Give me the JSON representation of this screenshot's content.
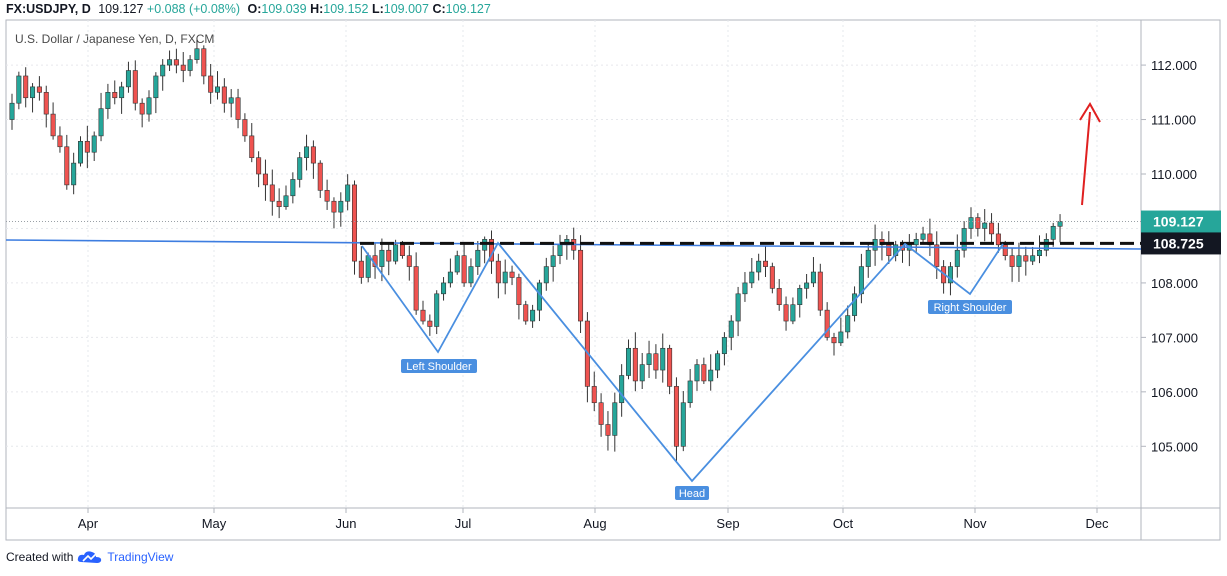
{
  "header": {
    "symbol": "FX:USDJPY, D",
    "last": "109.127",
    "change": "+0.088 (+0.08%)",
    "o_label": "O:",
    "o_value": "109.039",
    "h_label": "H:",
    "h_value": "109.152",
    "l_label": "L:",
    "l_value": "109.007",
    "c_label": "C:",
    "c_value": "109.127"
  },
  "subtitle": "U.S. Dollar / Japanese Yen, D, FXCM",
  "footer": {
    "created_with": "Created with",
    "brand": "TradingView"
  },
  "colors": {
    "up": "#26a69a",
    "down": "#ef5350",
    "annotation": "#4a8fe0",
    "neckline": "#3d7de0",
    "arrow": "#e02020",
    "price_badge": "#26a69a",
    "level_badge": "#131722"
  },
  "chart_data": {
    "type": "candlestick",
    "title": "U.S. Dollar / Japanese Yen, D, FXCM",
    "y_axis": {
      "ticks": [
        "105.000",
        "106.000",
        "107.000",
        "108.000",
        "109.000",
        "110.000",
        "111.000",
        "112.000"
      ],
      "ylim": [
        104.0,
        112.8
      ],
      "side": "right"
    },
    "x_axis": {
      "ticks": [
        "Apr",
        "May",
        "Jun",
        "Jul",
        "Aug",
        "Sep",
        "Oct",
        "Nov",
        "Dec"
      ]
    },
    "price_labels": {
      "last": "109.127",
      "level": "108.725"
    },
    "annotations": [
      "Left Shoulder",
      "Head",
      "Right Shoulder"
    ],
    "pattern": "inverse head and shoulders",
    "neckline_level": 108.725,
    "closes": [
      111.3,
      111.8,
      111.4,
      111.6,
      111.5,
      111.1,
      110.7,
      110.5,
      109.8,
      110.2,
      110.6,
      110.4,
      110.7,
      111.2,
      111.5,
      111.4,
      111.6,
      111.9,
      111.3,
      111.1,
      111.4,
      111.8,
      112.0,
      112.1,
      112.0,
      111.9,
      112.1,
      112.3,
      111.8,
      111.5,
      111.6,
      111.3,
      111.4,
      111.0,
      110.7,
      110.3,
      110.0,
      109.8,
      109.5,
      109.4,
      109.6,
      109.9,
      110.3,
      110.5,
      110.2,
      109.7,
      109.5,
      109.3,
      109.5,
      109.8,
      108.4,
      108.1,
      108.5,
      108.3,
      108.6,
      108.4,
      108.7,
      108.5,
      108.3,
      107.5,
      107.3,
      107.2,
      107.8,
      108.0,
      108.2,
      108.5,
      108.0,
      108.3,
      108.6,
      108.8,
      108.4,
      108.0,
      108.2,
      108.1,
      107.6,
      107.3,
      107.5,
      108.0,
      108.3,
      108.5,
      108.7,
      108.8,
      108.6,
      107.3,
      106.1,
      105.8,
      105.4,
      105.2,
      105.8,
      106.3,
      106.8,
      106.2,
      106.5,
      106.7,
      106.4,
      106.8,
      106.1,
      105.0,
      105.8,
      106.2,
      106.5,
      106.2,
      106.4,
      106.7,
      107.0,
      107.3,
      107.8,
      108.0,
      108.2,
      108.4,
      108.3,
      107.9,
      107.6,
      107.3,
      107.6,
      107.9,
      108.0,
      108.2,
      107.5,
      107.0,
      106.9,
      107.1,
      107.4,
      107.8,
      108.3,
      108.6,
      108.8,
      108.7,
      108.5,
      108.7,
      108.6,
      108.7,
      108.8,
      108.9,
      108.7,
      108.3,
      108.0,
      108.3,
      108.6,
      109.0,
      109.2,
      109.0,
      109.1,
      108.9,
      108.7,
      108.5,
      108.3,
      108.5,
      108.4,
      108.5,
      108.6,
      108.8,
      109.04,
      109.127
    ],
    "chart_type_note": "daily candles"
  }
}
